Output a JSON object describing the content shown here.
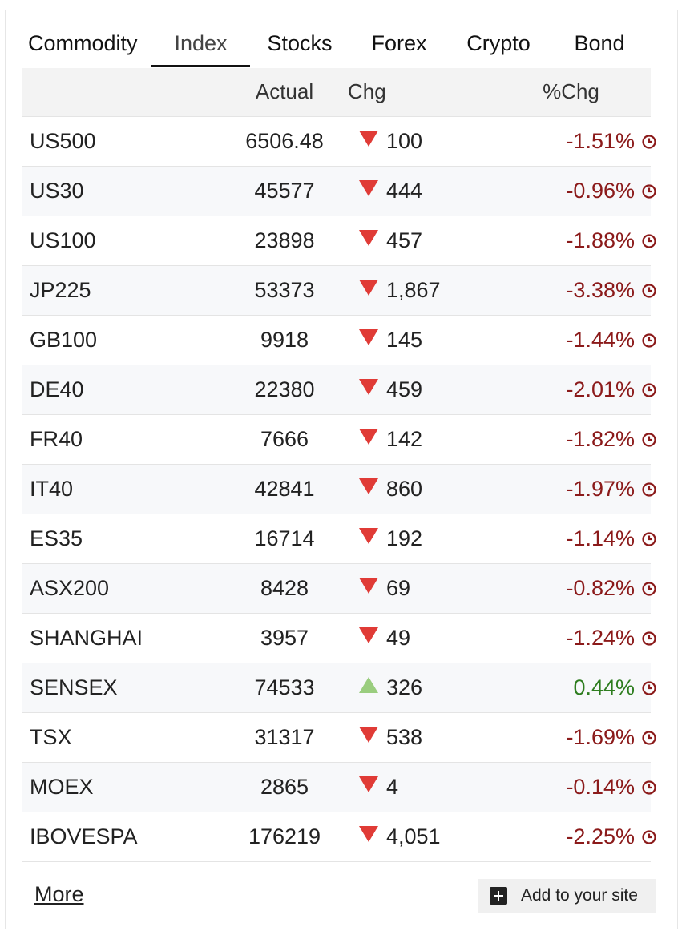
{
  "tabs": [
    {
      "label": "Commodity",
      "active": false
    },
    {
      "label": "Index",
      "active": true
    },
    {
      "label": "Stocks",
      "active": false
    },
    {
      "label": "Forex",
      "active": false
    },
    {
      "label": "Crypto",
      "active": false
    },
    {
      "label": "Bond",
      "active": false
    }
  ],
  "table": {
    "headers": {
      "name": "",
      "actual": "Actual",
      "chg": "Chg",
      "pct": "%Chg"
    },
    "rows": [
      {
        "name": "US500",
        "actual": "6506.48",
        "dir": "down",
        "chg": "100",
        "pct": "-1.51%"
      },
      {
        "name": "US30",
        "actual": "45577",
        "dir": "down",
        "chg": "444",
        "pct": "-0.96%"
      },
      {
        "name": "US100",
        "actual": "23898",
        "dir": "down",
        "chg": "457",
        "pct": "-1.88%"
      },
      {
        "name": "JP225",
        "actual": "53373",
        "dir": "down",
        "chg": "1,867",
        "pct": "-3.38%"
      },
      {
        "name": "GB100",
        "actual": "9918",
        "dir": "down",
        "chg": "145",
        "pct": "-1.44%"
      },
      {
        "name": "DE40",
        "actual": "22380",
        "dir": "down",
        "chg": "459",
        "pct": "-2.01%"
      },
      {
        "name": "FR40",
        "actual": "7666",
        "dir": "down",
        "chg": "142",
        "pct": "-1.82%"
      },
      {
        "name": "IT40",
        "actual": "42841",
        "dir": "down",
        "chg": "860",
        "pct": "-1.97%"
      },
      {
        "name": "ES35",
        "actual": "16714",
        "dir": "down",
        "chg": "192",
        "pct": "-1.14%"
      },
      {
        "name": "ASX200",
        "actual": "8428",
        "dir": "down",
        "chg": "69",
        "pct": "-0.82%"
      },
      {
        "name": "SHANGHAI",
        "actual": "3957",
        "dir": "down",
        "chg": "49",
        "pct": "-1.24%"
      },
      {
        "name": "SENSEX",
        "actual": "74533",
        "dir": "up",
        "chg": "326",
        "pct": "0.44%"
      },
      {
        "name": "TSX",
        "actual": "31317",
        "dir": "down",
        "chg": "538",
        "pct": "-1.69%"
      },
      {
        "name": "MOEX",
        "actual": "2865",
        "dir": "down",
        "chg": "4",
        "pct": "-0.14%"
      },
      {
        "name": "IBOVESPA",
        "actual": "176219",
        "dir": "down",
        "chg": "4,051",
        "pct": "-2.25%"
      }
    ]
  },
  "footer": {
    "more_label": "More",
    "add_site_label": "Add to your site"
  },
  "colors": {
    "down_arrow": "#e03b36",
    "up_arrow": "#9acd7e",
    "negative_text": "#8b1a1a",
    "positive_text": "#2e7d1f",
    "clock_icon": "#8b1a1a"
  },
  "icons": {
    "row_icon": "clock-icon",
    "add_icon": "plus-square-icon"
  }
}
